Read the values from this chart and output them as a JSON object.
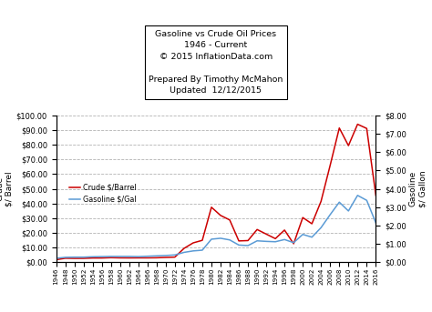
{
  "title_line1": "Gasoline vs Crude Oil Prices",
  "title_line2": "1946 - Current",
  "title_line3": "© 2015 InflationData.com",
  "title_line4": "Prepared By Timothy McMahon\nUpdated  12/12/2015",
  "ylabel_left": "Crude\n$/ Barrel",
  "ylabel_right": "Gasoline\n$/ Gallon",
  "crude_color": "#cc0000",
  "gasoline_color": "#5b9bd5",
  "background_color": "#ffffff",
  "years": [
    1946,
    1948,
    1950,
    1952,
    1954,
    1956,
    1958,
    1960,
    1962,
    1964,
    1966,
    1968,
    1970,
    1972,
    1974,
    1976,
    1978,
    1980,
    1982,
    1984,
    1986,
    1988,
    1990,
    1992,
    1994,
    1996,
    1998,
    2000,
    2002,
    2004,
    2006,
    2008,
    2010,
    2012,
    2014,
    2016
  ],
  "crude": [
    1.63,
    2.6,
    2.51,
    2.53,
    2.78,
    2.79,
    3.01,
    2.88,
    2.85,
    2.88,
    2.88,
    2.94,
    3.18,
    3.39,
    9.35,
    13.1,
    14.85,
    37.42,
    31.83,
    28.75,
    14.44,
    14.67,
    22.22,
    19.09,
    15.99,
    21.84,
    12.52,
    30.38,
    26.15,
    41.47,
    66.05,
    91.48,
    79.45,
    94.05,
    91.17,
    45.54
  ],
  "gasoline": [
    0.21,
    0.26,
    0.27,
    0.27,
    0.29,
    0.3,
    0.31,
    0.31,
    0.31,
    0.3,
    0.32,
    0.34,
    0.36,
    0.39,
    0.53,
    0.61,
    0.65,
    1.25,
    1.3,
    1.21,
    0.93,
    0.9,
    1.16,
    1.13,
    1.11,
    1.23,
    1.06,
    1.51,
    1.36,
    1.88,
    2.59,
    3.27,
    2.79,
    3.64,
    3.37,
    2.14
  ],
  "ylim_left": [
    0,
    100
  ],
  "ylim_right": [
    0,
    8
  ],
  "legend_crude": "Crude $/Barrel",
  "legend_gasoline": "Gasoline $/Gal",
  "grid_color": "#808080",
  "grid_alpha": 0.6,
  "grid_linestyle": "--",
  "grid_linewidth": 0.6
}
